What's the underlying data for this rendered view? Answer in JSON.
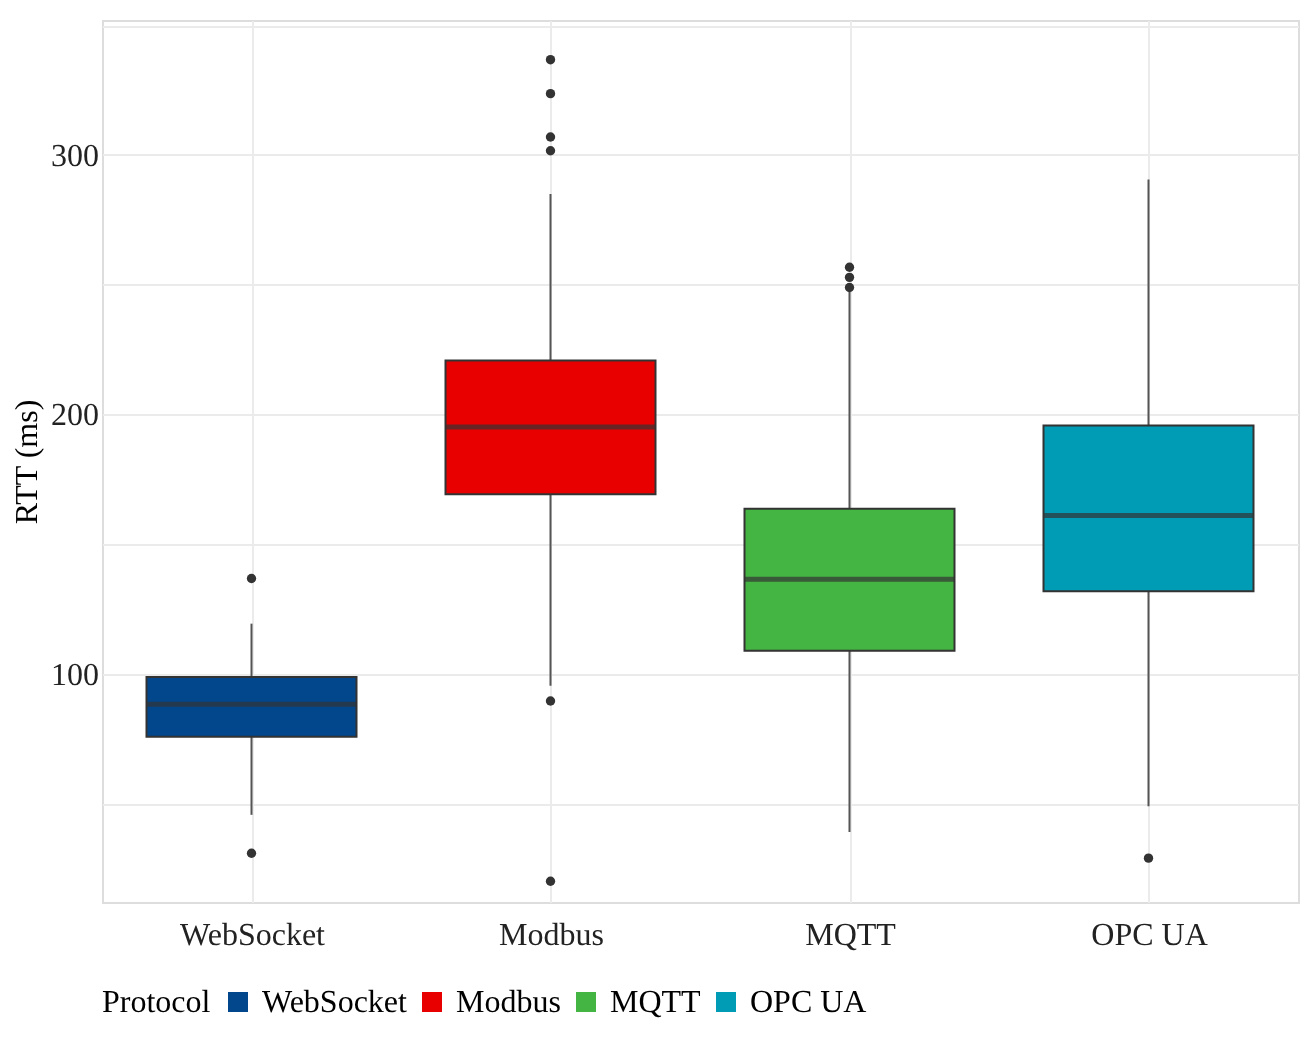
{
  "chart_data": {
    "type": "box",
    "ylabel": "RTT (ms)",
    "legend_title": "Protocol",
    "categories": [
      "WebSocket",
      "Modbus",
      "MQTT",
      "OPC UA"
    ],
    "series": [
      {
        "name": "WebSocket",
        "color": "#02468c",
        "boxes": [
          {
            "low": 45.6,
            "q1": 75.7,
            "median": 88.2,
            "q3": 98.7,
            "high": 119.3,
            "outliers": [
              136.7,
              30.8
            ]
          },
          null,
          null,
          null
        ]
      },
      {
        "name": "Modbus",
        "color": "#e80000",
        "boxes": [
          null,
          {
            "low": 95.4,
            "q1": 169.2,
            "median": 195.1,
            "q3": 220.7,
            "high": 284.9,
            "outliers": [
              336.7,
              323.6,
              306.9,
              301.6,
              89.5,
              20.0
            ]
          },
          null,
          null
        ]
      },
      {
        "name": "MQTT",
        "color": "#44b443",
        "boxes": [
          null,
          null,
          {
            "low": 39.0,
            "q1": 108.9,
            "median": 136.4,
            "q3": 163.6,
            "high": 247.2,
            "outliers": [
              256.7,
              252.8,
              248.9
            ]
          },
          null
        ]
      },
      {
        "name": "OPC UA",
        "color": "#009bb4",
        "boxes": [
          null,
          null,
          null,
          {
            "low": 48.9,
            "q1": 131.8,
            "median": 161.0,
            "q3": 195.7,
            "high": 290.5,
            "outliers": [
              28.9
            ]
          }
        ]
      }
    ],
    "ylim": [
      12,
      352
    ],
    "yticks": [
      {
        "value": 50,
        "label": null
      },
      100,
      {
        "value": 150,
        "label": null
      },
      200,
      {
        "value": 250,
        "label": null
      },
      300,
      {
        "value": 350,
        "label": null
      }
    ],
    "grid": true,
    "legend": "bottom"
  }
}
